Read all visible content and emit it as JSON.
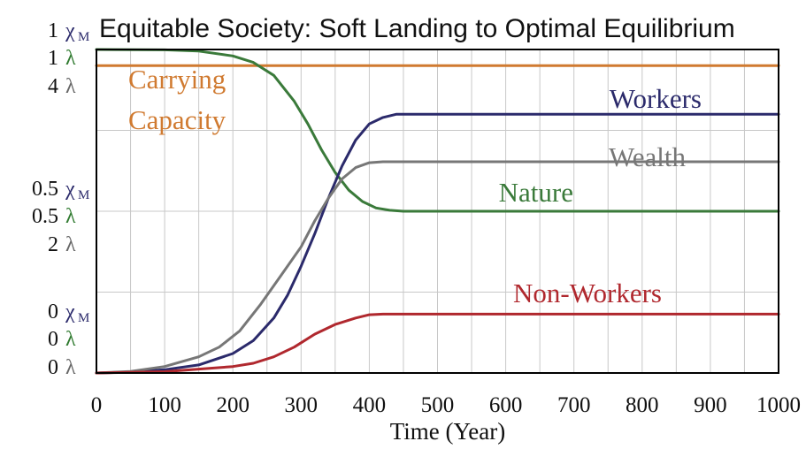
{
  "chart_data": {
    "type": "line",
    "title": "Equitable Society: Soft Landing to Optimal Equilibrium",
    "xlabel": "Time (Year)",
    "xlim": [
      0,
      1000
    ],
    "x_ticks": [
      "0",
      "100",
      "200",
      "300",
      "400",
      "500",
      "600",
      "700",
      "800",
      "900",
      "1000"
    ],
    "y_ticks": [
      {
        "level": "top",
        "rows": [
          {
            "value": "1",
            "unit": "χ",
            "sub": "M",
            "color": "#2b2a6b"
          },
          {
            "value": "1",
            "unit": "λ",
            "sub": "",
            "color": "#2f7a2f"
          },
          {
            "value": "4",
            "unit": "λ",
            "sub": "",
            "color": "#666666"
          }
        ]
      },
      {
        "level": "mid",
        "rows": [
          {
            "value": "0.5",
            "unit": "χ",
            "sub": "M",
            "color": "#2b2a6b"
          },
          {
            "value": "0.5",
            "unit": "λ",
            "sub": "",
            "color": "#2f7a2f"
          },
          {
            "value": "2",
            "unit": "λ",
            "sub": "",
            "color": "#666666"
          }
        ]
      },
      {
        "level": "bottom",
        "rows": [
          {
            "value": "0",
            "unit": "χ",
            "sub": "M",
            "color": "#2b2a6b"
          },
          {
            "value": "0",
            "unit": "λ",
            "sub": "",
            "color": "#2f7a2f"
          },
          {
            "value": "0",
            "unit": "λ",
            "sub": "",
            "color": "#666666"
          }
        ]
      }
    ],
    "grid": true,
    "series": [
      {
        "name": "Carrying Capacity",
        "color": "#d07a30",
        "x": [
          0,
          1000
        ],
        "y": [
          0.95,
          0.95
        ]
      },
      {
        "name": "Nature",
        "color": "#3a7a3a",
        "x": [
          0,
          100,
          150,
          200,
          230,
          260,
          290,
          310,
          330,
          350,
          370,
          390,
          410,
          430,
          450,
          1000
        ],
        "y": [
          1.0,
          0.999,
          0.995,
          0.98,
          0.96,
          0.92,
          0.84,
          0.77,
          0.69,
          0.62,
          0.565,
          0.53,
          0.51,
          0.503,
          0.5,
          0.5
        ]
      },
      {
        "name": "Workers",
        "color": "#2b2a6b",
        "x": [
          0,
          50,
          100,
          150,
          200,
          230,
          260,
          280,
          300,
          320,
          340,
          360,
          380,
          400,
          420,
          440,
          450,
          1000
        ],
        "y": [
          0.0,
          0.003,
          0.01,
          0.025,
          0.06,
          0.1,
          0.17,
          0.24,
          0.33,
          0.43,
          0.54,
          0.64,
          0.72,
          0.77,
          0.79,
          0.8,
          0.8,
          0.8
        ]
      },
      {
        "name": "Wealth",
        "color": "#777777",
        "x": [
          0,
          50,
          100,
          150,
          180,
          210,
          240,
          270,
          300,
          320,
          340,
          360,
          380,
          400,
          420,
          1000
        ],
        "y": [
          0.0,
          0.005,
          0.02,
          0.05,
          0.08,
          0.13,
          0.21,
          0.3,
          0.39,
          0.47,
          0.54,
          0.6,
          0.635,
          0.65,
          0.653,
          0.653
        ]
      },
      {
        "name": "Non-Workers",
        "color": "#b0282e",
        "x": [
          0,
          100,
          200,
          230,
          260,
          290,
          320,
          350,
          380,
          400,
          420,
          1000
        ],
        "y": [
          0.0,
          0.004,
          0.02,
          0.03,
          0.05,
          0.08,
          0.12,
          0.15,
          0.17,
          0.18,
          0.182,
          0.182
        ]
      }
    ],
    "labels": [
      {
        "text": "Carrying",
        "color": "#d07a30"
      },
      {
        "text": "Capacity",
        "color": "#d07a30"
      },
      {
        "text": "Workers",
        "color": "#2b2a6b"
      },
      {
        "text": "Wealth",
        "color": "#777777"
      },
      {
        "text": "Nature",
        "color": "#3a7a3a"
      },
      {
        "text": "Non-Workers",
        "color": "#b0282e"
      }
    ]
  }
}
